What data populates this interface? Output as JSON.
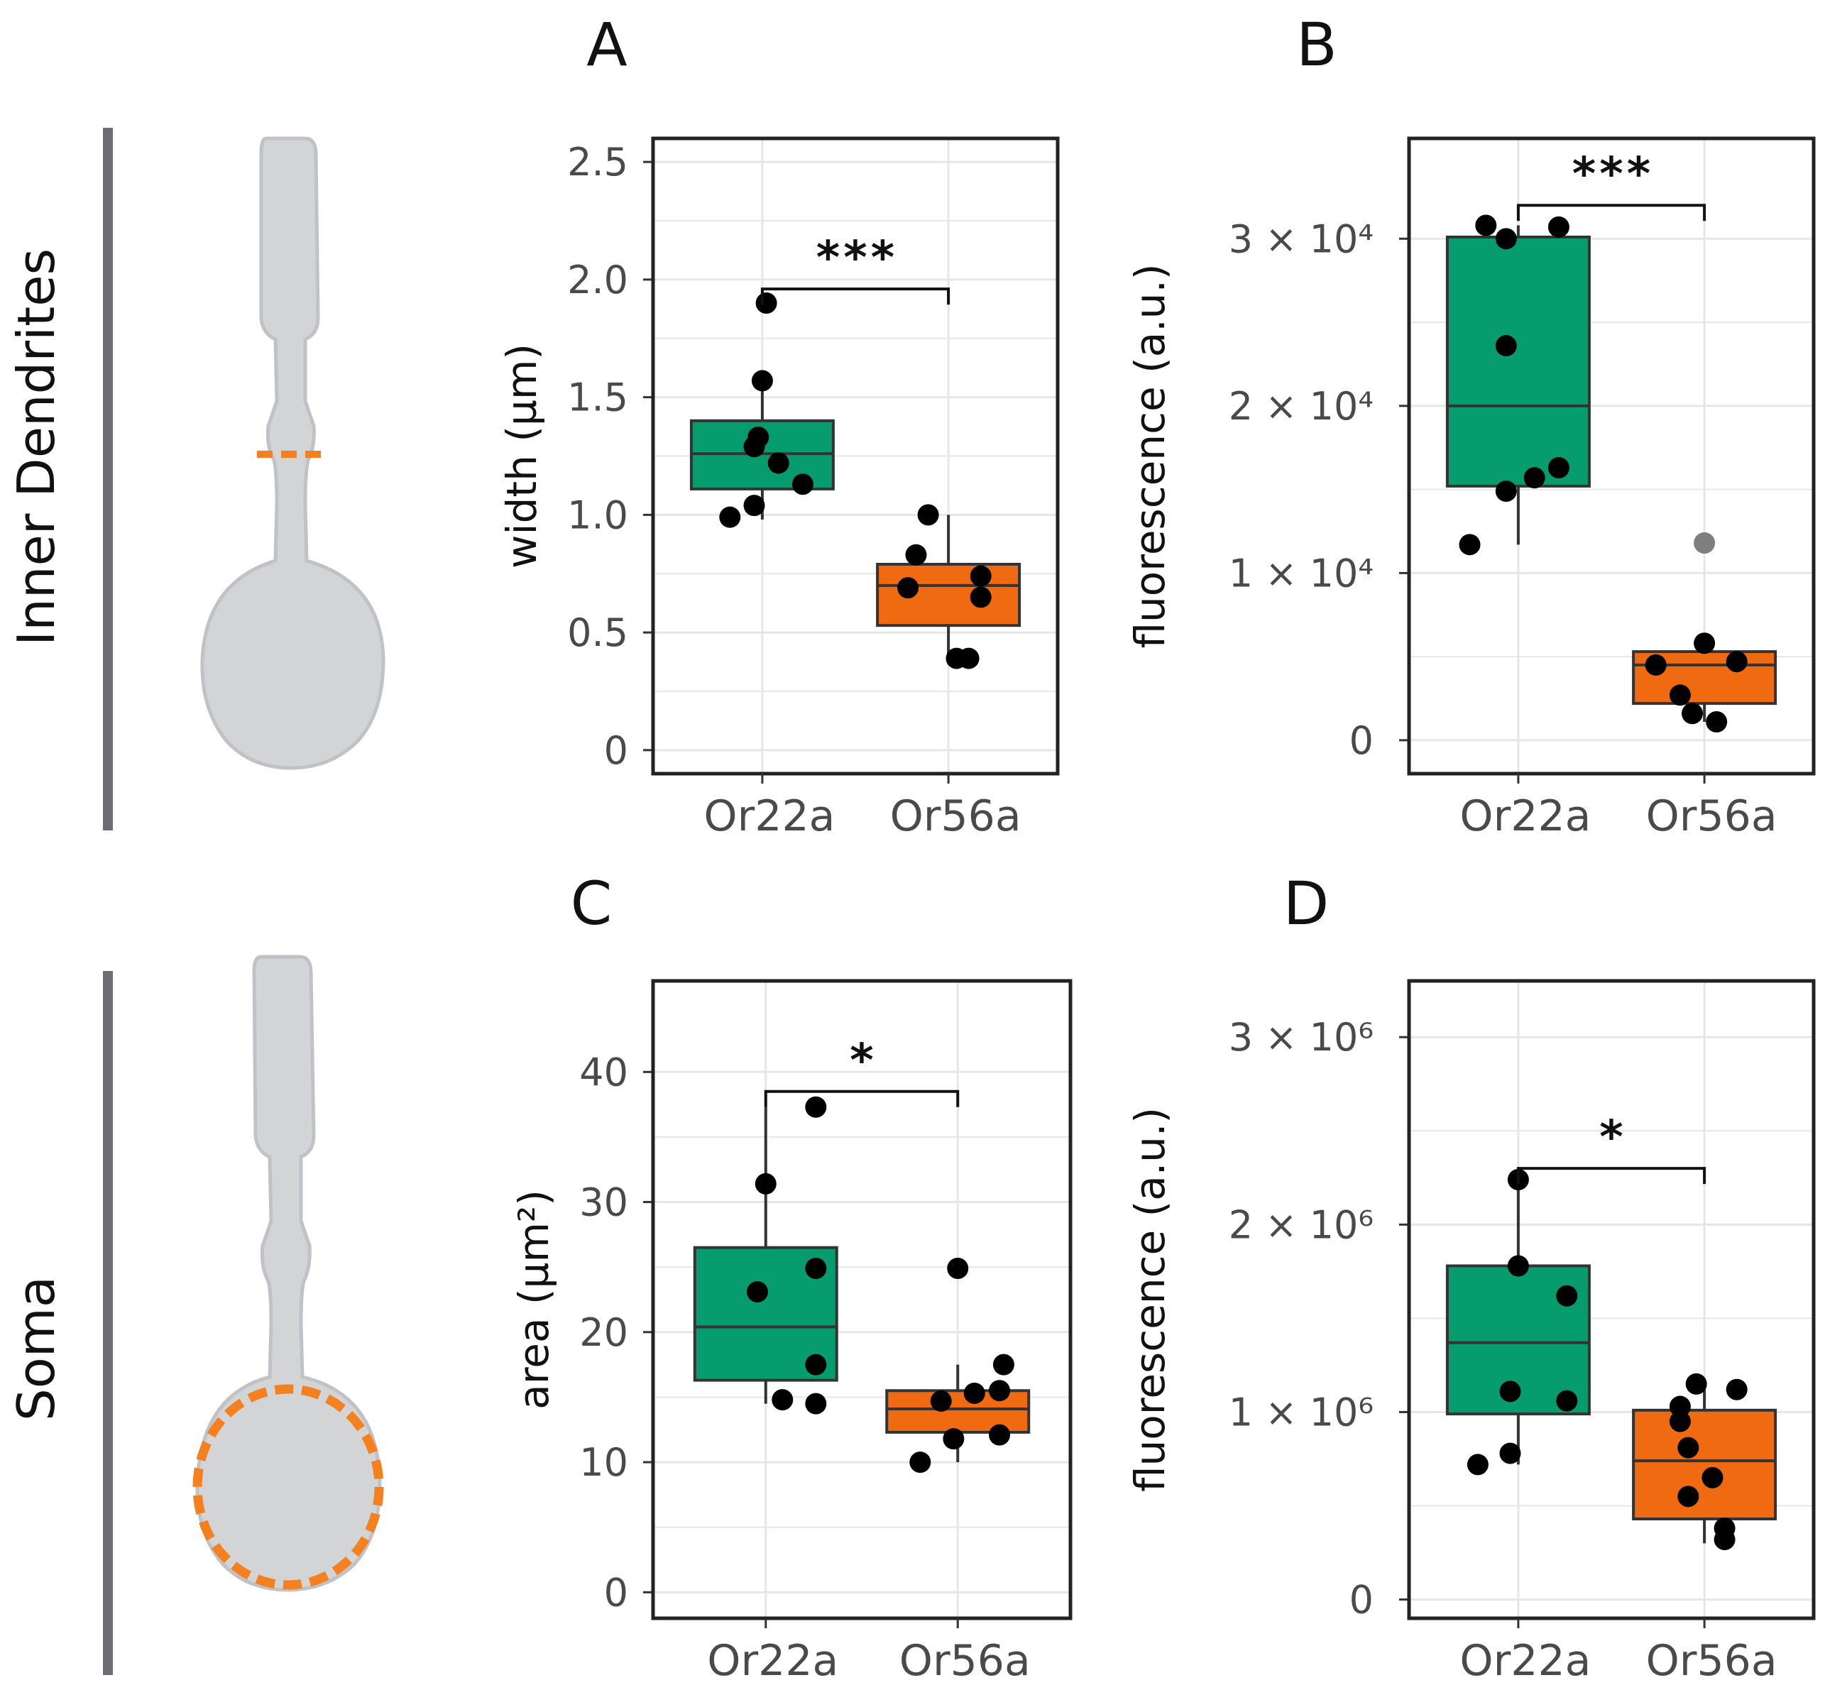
{
  "figure": {
    "row_labels": [
      "Inner Dendrites",
      "Soma"
    ],
    "icons": [
      "neuron-dendrite-cross-section-icon",
      "neuron-soma-outline-icon"
    ],
    "colors": {
      "or22a": "#079c6d",
      "or56a": "#f06a12",
      "neuron": "#d3d4d6",
      "outline_accent": "#f4801f",
      "grid": "#e6e6e6",
      "outlier": "#7f7f7f"
    }
  },
  "chart_data": [
    {
      "panel": "A",
      "type": "box",
      "ylabel": "width (µm)",
      "categories": [
        "Or22a",
        "Or56a"
      ],
      "ylim": [
        -0.1,
        2.6
      ],
      "yticks": [
        0,
        0.5,
        1.0,
        1.5,
        2.0,
        2.5
      ],
      "ytick_labels": [
        "0",
        "0.5",
        "1.0",
        "1.5",
        "2.0",
        "2.5"
      ],
      "boxes": [
        {
          "q1": 1.11,
          "median": 1.26,
          "q3": 1.4,
          "whisker_low": 0.98,
          "whisker_high": 1.57
        },
        {
          "q1": 0.53,
          "median": 0.7,
          "q3": 0.79,
          "whisker_low": 0.39,
          "whisker_high": 1.0
        }
      ],
      "points": [
        [
          0.99,
          1.04,
          1.13,
          1.22,
          1.29,
          1.33,
          1.57,
          1.9
        ],
        [
          0.39,
          0.39,
          0.65,
          0.69,
          0.74,
          0.83,
          1.0
        ]
      ],
      "point_jitter": [
        [
          -0.08,
          -0.02,
          0.1,
          0.04,
          -0.02,
          -0.01,
          0.0,
          0.01
        ],
        [
          0.02,
          0.05,
          0.08,
          -0.1,
          0.08,
          -0.08,
          -0.05
        ]
      ],
      "outliers": [
        [],
        []
      ],
      "significance": "***",
      "bracket_y": 1.96
    },
    {
      "panel": "B",
      "type": "box",
      "ylabel": "fluorescence (a.u.)",
      "categories": [
        "Or22a",
        "Or56a"
      ],
      "ylim": [
        -2000,
        36000
      ],
      "yticks": [
        0,
        10000,
        20000,
        30000
      ],
      "ytick_labels": [
        "0",
        "1 × 10⁴",
        "2 × 10⁴",
        "3 × 10⁴"
      ],
      "boxes": [
        {
          "q1": 15200,
          "median": 20000,
          "q3": 30100,
          "whisker_low": 11700,
          "whisker_high": 30800
        },
        {
          "q1": 2200,
          "median": 4500,
          "q3": 5300,
          "whisker_low": 1100,
          "whisker_high": 5800
        }
      ],
      "points": [
        [
          11700,
          14900,
          15700,
          16300,
          23600,
          30000,
          30700,
          30800
        ],
        [
          1100,
          1600,
          2700,
          4500,
          4700,
          5800
        ]
      ],
      "point_jitter": [
        [
          -0.12,
          -0.03,
          0.04,
          0.1,
          -0.03,
          -0.03,
          0.1,
          -0.08
        ],
        [
          0.03,
          -0.03,
          -0.06,
          -0.12,
          0.08,
          0.0
        ]
      ],
      "outliers": [
        [],
        [
          11800
        ]
      ],
      "significance": "***",
      "bracket_y": 32000
    },
    {
      "panel": "C",
      "type": "box",
      "ylabel": "area (µm²)",
      "categories": [
        "Or22a",
        "Or56a"
      ],
      "ylim": [
        -2,
        47
      ],
      "yticks": [
        0,
        10,
        20,
        30,
        40
      ],
      "ytick_labels": [
        "0",
        "10",
        "20",
        "30",
        "40"
      ],
      "boxes": [
        {
          "q1": 16.3,
          "median": 20.4,
          "q3": 26.5,
          "whisker_low": 14.5,
          "whisker_high": 37.3
        },
        {
          "q1": 12.3,
          "median": 14.1,
          "q3": 15.5,
          "whisker_low": 10.0,
          "whisker_high": 17.5
        }
      ],
      "points": [
        [
          14.5,
          14.8,
          17.5,
          23.1,
          24.9,
          31.4,
          37.3
        ],
        [
          10.0,
          11.8,
          12.1,
          14.7,
          15.3,
          15.5,
          17.5,
          24.9
        ]
      ],
      "point_jitter": [
        [
          0.12,
          0.04,
          0.12,
          -0.02,
          0.12,
          0.0,
          0.12
        ],
        [
          -0.09,
          -0.01,
          0.1,
          -0.04,
          0.04,
          0.1,
          0.11,
          0.0
        ]
      ],
      "outliers": [
        [],
        []
      ],
      "significance": "*",
      "bracket_y": 38.5
    },
    {
      "panel": "D",
      "type": "box",
      "ylabel": "fluorescence (a.u.)",
      "categories": [
        "Or22a",
        "Or56a"
      ],
      "ylim": [
        -100000,
        3300000
      ],
      "yticks": [
        0,
        1000000,
        2000000,
        3000000
      ],
      "ytick_labels": [
        "0",
        "1 × 10⁶",
        "2 × 10⁶",
        "3 × 10⁶"
      ],
      "boxes": [
        {
          "q1": 990000,
          "median": 1370000,
          "q3": 1780000,
          "whisker_low": 720000,
          "whisker_high": 2240000
        },
        {
          "q1": 430000,
          "median": 740000,
          "q3": 1010000,
          "whisker_low": 300000,
          "whisker_high": 1150000
        }
      ],
      "points": [
        [
          720000,
          780000,
          1060000,
          1110000,
          1620000,
          1780000,
          2240000
        ],
        [
          320000,
          380000,
          550000,
          650000,
          810000,
          950000,
          1030000,
          1120000,
          1150000
        ]
      ],
      "point_jitter": [
        [
          -0.1,
          -0.02,
          0.12,
          -0.02,
          0.12,
          0.0,
          0.0
        ],
        [
          0.05,
          0.05,
          -0.04,
          0.02,
          -0.04,
          -0.06,
          -0.06,
          0.08,
          -0.02
        ]
      ],
      "outliers": [
        [],
        []
      ],
      "significance": "*",
      "bracket_y": 2300000
    }
  ]
}
